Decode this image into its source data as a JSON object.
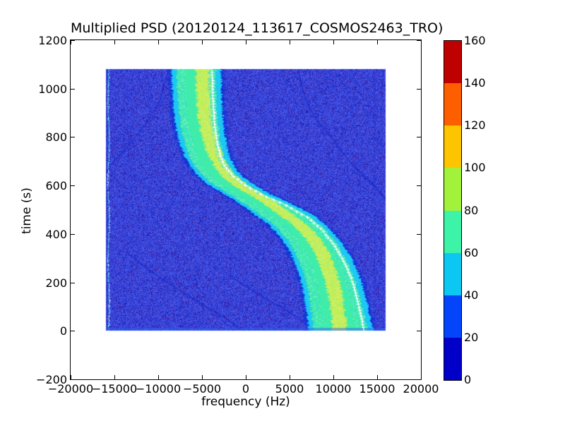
{
  "figure": {
    "title": "Multiplied PSD (20120124_113617_COSMOS2463_TRO)",
    "x_axis": {
      "label": "frequency (Hz)",
      "tick_values": [
        -20000,
        -15000,
        -10000,
        -5000,
        0,
        5000,
        10000,
        15000,
        20000
      ],
      "tick_labels": [
        "−20000",
        "−15000",
        "−10000",
        "−5000",
        "0",
        "5000",
        "10000",
        "15000",
        "20000"
      ]
    },
    "y_axis": {
      "label": "time (s)",
      "tick_values": [
        -200,
        0,
        200,
        400,
        600,
        800,
        1000,
        1200
      ],
      "tick_labels": [
        "−200",
        "0",
        "200",
        "400",
        "600",
        "800",
        "1000",
        "1200"
      ]
    },
    "colorbar": {
      "range": [
        0,
        160
      ],
      "tick_values": [
        0,
        20,
        40,
        60,
        80,
        100,
        120,
        140,
        160
      ],
      "tick_labels": [
        "0",
        "20",
        "40",
        "60",
        "80",
        "100",
        "120",
        "140",
        "160"
      ],
      "segment_colors_bottom_to_top": [
        "#0000c8",
        "#0445fb",
        "#0cc7f2",
        "#3df3a8",
        "#a2f23c",
        "#fdc500",
        "#fc5e00",
        "#bf0000"
      ]
    }
  },
  "chart_data": {
    "type": "heatmap",
    "title": "Multiplied PSD (20120124_113617_COSMOS2463_TRO)",
    "xlabel": "frequency (Hz)",
    "ylabel": "time (s)",
    "xlim": [
      -20000,
      20000
    ],
    "ylim": [
      -200,
      1200
    ],
    "colorbar_range": [
      0,
      160
    ],
    "colormap": "jet, 8 discrete bins of 20",
    "data_extent": {
      "freq_hz": [
        -16000,
        16000
      ],
      "time_s": [
        0,
        1080
      ]
    },
    "background_noise": {
      "palette": [
        {
          "color": "#424fe0",
          "w": 0.38
        },
        {
          "color": "#3343d8",
          "w": 0.2
        },
        {
          "color": "#2634cf",
          "w": 0.13
        },
        {
          "color": "#5560e8",
          "w": 0.1
        },
        {
          "color": "#1b27c2",
          "w": 0.09
        },
        {
          "color": "#3a20aa",
          "w": 0.05
        },
        {
          "color": "#2a1290",
          "w": 0.03
        },
        {
          "color": "#6a14a2",
          "w": 0.013
        },
        {
          "color": "#7c1050",
          "w": 0.007
        }
      ]
    },
    "carrier_line": {
      "freq_hz": -15700,
      "color": "#4fd9ec",
      "bright_color": "#d6f6fa"
    },
    "vertical_stripes": [
      {
        "freq_hz": 14700,
        "alpha": 0.18
      },
      {
        "freq_hz": 15500,
        "alpha": 0.1
      },
      {
        "freq_hz": -13900,
        "alpha": 0.1
      },
      {
        "freq_hz": -15850,
        "alpha": 0.22
      }
    ],
    "alias_streaks": [
      {
        "points": [
          [
            1080,
            -8800
          ],
          [
            950,
            -9800
          ],
          [
            850,
            -11500
          ],
          [
            760,
            -13500
          ],
          [
            690,
            -15300
          ],
          [
            650,
            -16000
          ]
        ]
      },
      {
        "points": [
          [
            1080,
            6000
          ],
          [
            980,
            6600
          ],
          [
            885,
            7800
          ],
          [
            780,
            10200
          ],
          [
            700,
            11800
          ],
          [
            640,
            13500
          ],
          [
            580,
            15200
          ],
          [
            540,
            16000
          ]
        ]
      },
      {
        "points": [
          [
            320,
            -13500
          ],
          [
            250,
            -11000
          ],
          [
            180,
            -8200
          ],
          [
            110,
            -5000
          ],
          [
            40,
            -1800
          ],
          [
            0,
            -400
          ]
        ]
      },
      {
        "points": [
          [
            230,
            -2000
          ],
          [
            150,
            1500
          ],
          [
            80,
            4800
          ],
          [
            20,
            7500
          ]
        ]
      }
    ],
    "doppler_band": {
      "description": "S-shaped received signal band; layers from outside in: dark-blue edge, cyan, spring green, yellow-green core; white plus-marker predicted track runs along right side of band",
      "center_track_t_hz": [
        [
          0,
          10600
        ],
        [
          80,
          10350
        ],
        [
          160,
          10000
        ],
        [
          240,
          9450
        ],
        [
          320,
          8550
        ],
        [
          380,
          7500
        ],
        [
          440,
          6000
        ],
        [
          480,
          4400
        ],
        [
          520,
          2900
        ],
        [
          560,
          1200
        ],
        [
          600,
          -700
        ],
        [
          640,
          -2100
        ],
        [
          680,
          -2950
        ],
        [
          720,
          -3550
        ],
        [
          780,
          -4200
        ],
        [
          840,
          -4600
        ],
        [
          920,
          -4850
        ],
        [
          1000,
          -5000
        ],
        [
          1080,
          -5100
        ]
      ],
      "predicted_track_t_hz": [
        [
          0,
          13500
        ],
        [
          100,
          12900
        ],
        [
          200,
          12200
        ],
        [
          280,
          11300
        ],
        [
          360,
          10000
        ],
        [
          420,
          8600
        ],
        [
          470,
          7000
        ],
        [
          520,
          4500
        ],
        [
          560,
          2000
        ],
        [
          600,
          0
        ],
        [
          640,
          -1500
        ],
        [
          680,
          -2400
        ],
        [
          720,
          -2900
        ],
        [
          780,
          -3300
        ],
        [
          860,
          -3600
        ],
        [
          960,
          -3760
        ],
        [
          1080,
          -3870
        ]
      ],
      "half_width_hz": 3550,
      "layers": {
        "outer_edge_color": "#1335d6",
        "cyan_color": "#1cc8f4",
        "green_color": "#3feca9",
        "yellow_core_color": "#cdee5c",
        "white_track_color": "#ffffff"
      },
      "speckle_colors": {
        "green_band": [
          "#2bd2e9",
          "#8df2c6"
        ],
        "yellow_core": [
          "#aef04a",
          "#d9ef6e",
          "#8fee86",
          "#c4ed55"
        ]
      }
    }
  }
}
